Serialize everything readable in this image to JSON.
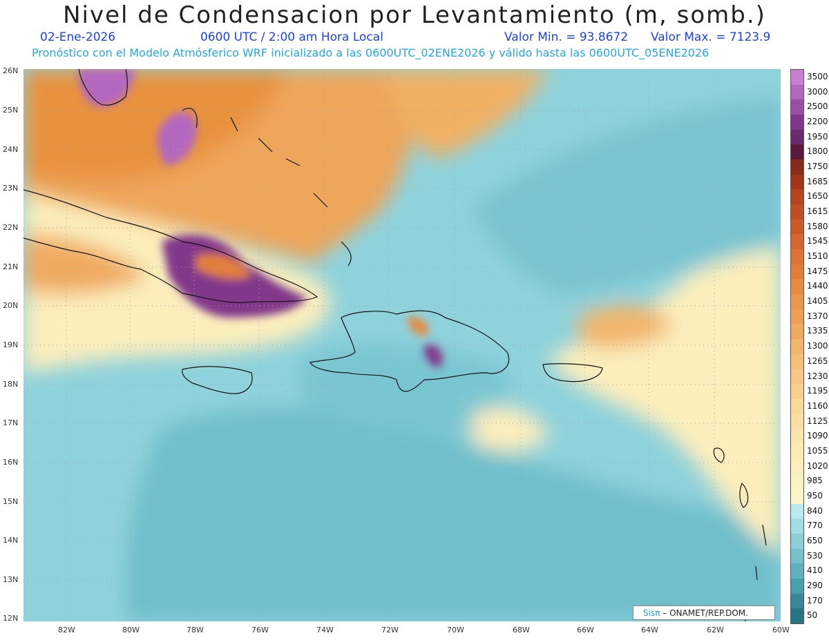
{
  "title": "Nivel de Condensacion por Levantamiento (m, somb.)",
  "header": {
    "date": "02-Ene-2026",
    "time": "0600 UTC / 2:00 am Hora Local",
    "min_label": "Valor Min. = 93.8672",
    "max_label": "Valor Max. = 7123.9",
    "forecast_line": "Pronóstico con el Modelo Atmósferico WRF inicializado a las 0600UTC_02ENE2026 y válido hasta las  0600UTC_05ENE2026"
  },
  "map": {
    "lat_labels": [
      "26N",
      "25N",
      "24N",
      "23N",
      "22N",
      "21N",
      "20N",
      "19N",
      "18N",
      "17N",
      "16N",
      "15N",
      "14N",
      "13N",
      "12N"
    ],
    "lon_labels": [
      "82W",
      "80W",
      "78W",
      "76W",
      "74W",
      "72W",
      "70W",
      "68W",
      "66W",
      "64W",
      "62W",
      "60W"
    ]
  },
  "legend": {
    "levels": [
      "3500",
      "3000",
      "2500",
      "2200",
      "1950",
      "1800",
      "1750",
      "1685",
      "1650",
      "1615",
      "1580",
      "1545",
      "1510",
      "1475",
      "1440",
      "1405",
      "1370",
      "1335",
      "1300",
      "1265",
      "1230",
      "1195",
      "1160",
      "1125",
      "1090",
      "1055",
      "1020",
      "985",
      "950",
      "840",
      "770",
      "650",
      "530",
      "410",
      "290",
      "170",
      "50"
    ],
    "colors": [
      "#c77fd0",
      "#b368bf",
      "#9a4fa5",
      "#82378a",
      "#6a2a6e",
      "#5a1a3a",
      "#8a2a18",
      "#a33618",
      "#b54420",
      "#c24e24",
      "#cc5a28",
      "#d4662e",
      "#dc7234",
      "#e27e3a",
      "#e68a42",
      "#ea954c",
      "#ee9f56",
      "#f0aa60",
      "#f2b56c",
      "#f4bf78",
      "#f6c884",
      "#f8d08e",
      "#f9d898",
      "#fadfa2",
      "#fbe5ac",
      "#fbeab4",
      "#fbeebc",
      "#fbf2c2",
      "#fdf6c8",
      "#b8eaf0",
      "#a2dde5",
      "#8ccfd9",
      "#76c0cc",
      "#60b1bf",
      "#4a9fae",
      "#37889a",
      "#267584"
    ]
  },
  "credit": {
    "brand": "Sisπ",
    "text": " ONAMET/REP.DOM."
  }
}
